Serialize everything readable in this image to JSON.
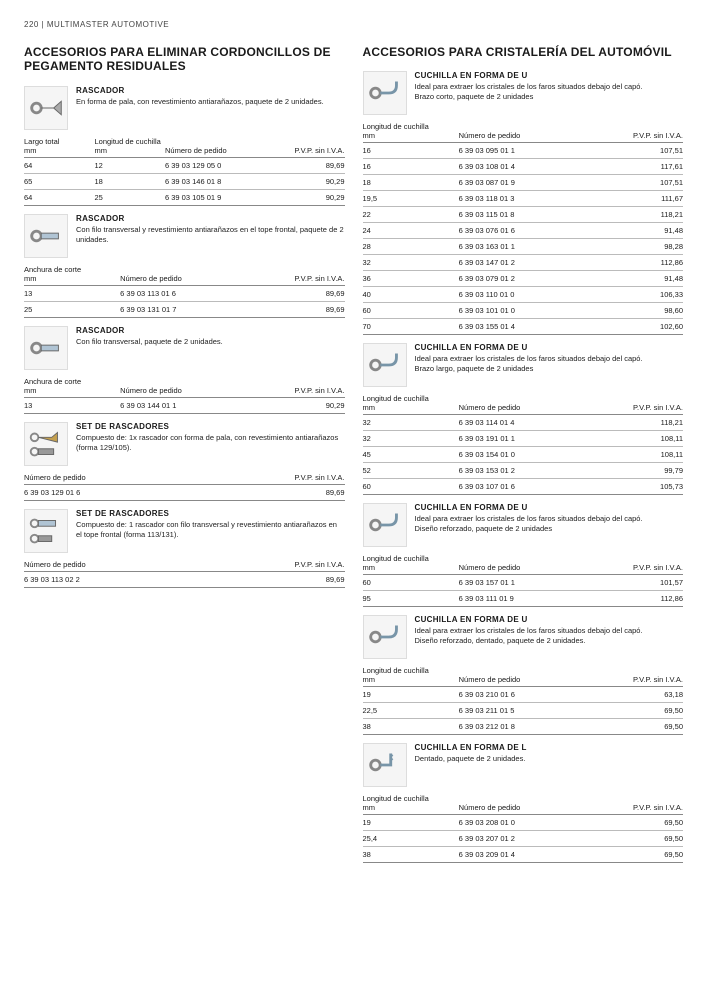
{
  "page_header": "220  |  MULTIMASTER AUTOMOTIVE",
  "left": {
    "title": "ACCESORIOS PARA ELIMINAR CORDONCILLOS DE PEGAMENTO RESIDUALES",
    "products": [
      {
        "title": "RASCADOR",
        "desc": "En forma de pala, con revestimiento antiarañazos, paquete de 2 unidades.",
        "cols": [
          "Largo total mm",
          "Longitud de cuchilla mm",
          "Número de pedido",
          "P.V.P. sin I.V.A."
        ],
        "col_mode": "four",
        "rows": [
          [
            "64",
            "12",
            "6 39 03 129 05 0",
            "89,69"
          ],
          [
            "65",
            "18",
            "6 39 03 146 01 8",
            "90,29"
          ],
          [
            "64",
            "25",
            "6 39 03 105 01 9",
            "90,29"
          ]
        ],
        "thumb": "spade"
      },
      {
        "title": "RASCADOR",
        "desc": "Con filo transversal y revestimiento antiarañazos en el tope frontal, paquete de 2 unidades.",
        "cols": [
          "Anchura de corte mm",
          "",
          "Número de pedido",
          "P.V.P. sin I.V.A."
        ],
        "col_mode": "three",
        "rows": [
          [
            "13",
            "",
            "6 39 03 113 01 6",
            "89,69"
          ],
          [
            "25",
            "",
            "6 39 03 131 01 7",
            "89,69"
          ]
        ],
        "thumb": "trans"
      },
      {
        "title": "RASCADOR",
        "desc": "Con filo transversal, paquete de 2 unidades.",
        "cols": [
          "Anchura de corte mm",
          "",
          "Número de pedido",
          "P.V.P. sin I.V.A."
        ],
        "col_mode": "three",
        "rows": [
          [
            "13",
            "",
            "6 39 03 144 01 1",
            "90,29"
          ]
        ],
        "thumb": "trans2"
      },
      {
        "title": "SET DE RASCADORES",
        "desc": "Compuesto de: 1x rascador con forma de pala, con revestimiento antiarañazos (forma 129/105).",
        "cols": [
          "Número de pedido",
          "",
          "",
          "P.V.P. sin I.V.A."
        ],
        "col_mode": "two",
        "rows": [
          [
            "6 39 03 129 01 6",
            "",
            "",
            "89,69"
          ]
        ],
        "thumb": "set1"
      },
      {
        "title": "SET DE RASCADORES",
        "desc": "Compuesto de: 1 rascador con filo transversal y revestimiento antiarañazos en el tope frontal (forma 113/131).",
        "cols": [
          "Número de pedido",
          "",
          "",
          "P.V.P. sin I.V.A."
        ],
        "col_mode": "two",
        "rows": [
          [
            "6 39 03 113 02 2",
            "",
            "",
            "89,69"
          ]
        ],
        "thumb": "set2"
      }
    ]
  },
  "right": {
    "title": "ACCESORIOS PARA CRISTALERÍA DEL AUTOMÓVIL",
    "products": [
      {
        "title": "CUCHILLA EN FORMA DE U",
        "desc": "Ideal para extraer los cristales de los faros situados debajo del capó.\nBrazo corto, paquete de 2 unidades",
        "cols": [
          "Longitud de cuchilla mm",
          "",
          "Número de pedido",
          "P.V.P. sin I.V.A."
        ],
        "col_mode": "three",
        "rows": [
          [
            "16",
            "",
            "6 39 03 095 01 1",
            "107,51"
          ],
          [
            "16",
            "",
            "6 39 03 108 01 4",
            "117,61"
          ],
          [
            "18",
            "",
            "6 39 03 087 01 9",
            "107,51"
          ],
          [
            "19,5",
            "",
            "6 39 03 118 01 3",
            "111,67"
          ],
          [
            "22",
            "",
            "6 39 03 115 01 8",
            "118,21"
          ],
          [
            "24",
            "",
            "6 39 03 076 01 6",
            "91,48"
          ],
          [
            "28",
            "",
            "6 39 03 163 01 1",
            "98,28"
          ],
          [
            "32",
            "",
            "6 39 03 147 01 2",
            "112,86"
          ],
          [
            "36",
            "",
            "6 39 03 079 01 2",
            "91,48"
          ],
          [
            "40",
            "",
            "6 39 03 110 01 0",
            "106,33"
          ],
          [
            "60",
            "",
            "6 39 03 101 01 0",
            "98,60"
          ],
          [
            "70",
            "",
            "6 39 03 155 01 4",
            "102,60"
          ]
        ],
        "thumb": "ublade"
      },
      {
        "title": "CUCHILLA EN FORMA DE U",
        "desc": "Ideal para extraer los cristales de los faros situados debajo del capó.\nBrazo largo, paquete de 2 unidades",
        "cols": [
          "Longitud de cuchilla mm",
          "",
          "Número de pedido",
          "P.V.P. sin I.V.A."
        ],
        "col_mode": "three",
        "rows": [
          [
            "32",
            "",
            "6 39 03 114 01 4",
            "118,21"
          ],
          [
            "32",
            "",
            "6 39 03 191 01 1",
            "108,11"
          ],
          [
            "45",
            "",
            "6 39 03 154 01 0",
            "108,11"
          ],
          [
            "52",
            "",
            "6 39 03 153 01 2",
            "99,79"
          ],
          [
            "60",
            "",
            "6 39 03 107 01 6",
            "105,73"
          ]
        ],
        "thumb": "ulong"
      },
      {
        "title": "CUCHILLA EN FORMA DE U",
        "desc": "Ideal para extraer los cristales de los faros situados debajo del capó.\nDiseño reforzado, paquete de 2 unidades",
        "cols": [
          "Longitud de cuchilla mm",
          "",
          "Número de pedido",
          "P.V.P. sin I.V.A."
        ],
        "col_mode": "three",
        "rows": [
          [
            "60",
            "",
            "6 39 03 157 01 1",
            "101,57"
          ],
          [
            "95",
            "",
            "6 39 03 111 01 9",
            "112,86"
          ]
        ],
        "thumb": "uref"
      },
      {
        "title": "CUCHILLA EN FORMA DE U",
        "desc": "Ideal para extraer los cristales de los faros situados debajo del capó.\nDiseño reforzado, dentado, paquete de 2 unidades.",
        "cols": [
          "Longitud de cuchilla mm",
          "",
          "Número de pedido",
          "P.V.P. sin I.V.A."
        ],
        "col_mode": "three",
        "rows": [
          [
            "19",
            "",
            "6 39 03 210 01 6",
            "63,18"
          ],
          [
            "22,5",
            "",
            "6 39 03 211 01 5",
            "69,50"
          ],
          [
            "38",
            "",
            "6 39 03 212 01 8",
            "69,50"
          ]
        ],
        "thumb": "udent"
      },
      {
        "title": "CUCHILLA EN FORMA DE L",
        "desc": "Dentado, paquete de 2 unidades.",
        "cols": [
          "Longitud de cuchilla mm",
          "",
          "Número de pedido",
          "P.V.P. sin I.V.A."
        ],
        "col_mode": "three",
        "rows": [
          [
            "19",
            "",
            "6 39 03 208 01 0",
            "69,50"
          ],
          [
            "25,4",
            "",
            "6 39 03 207 01 2",
            "69,50"
          ],
          [
            "38",
            "",
            "6 39 03 209 01 4",
            "69,50"
          ]
        ],
        "thumb": "lblade"
      }
    ]
  },
  "style": {
    "text_color": "#1a1a1a",
    "bg": "#ffffff",
    "border": "#888888",
    "row_border": "#bbbbbb",
    "thumb_bg": "#f5f5f5"
  }
}
